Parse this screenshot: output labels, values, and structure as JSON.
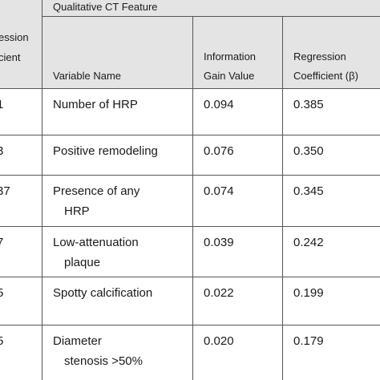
{
  "header": {
    "title": "Qualitative CT Feature",
    "left_column": [
      "ession",
      "cient"
    ],
    "variable": "Variable Name",
    "gain": [
      "Information",
      "Gain Value"
    ],
    "coef": [
      "Regression",
      "Coefficient (β)"
    ]
  },
  "table": {
    "rows": [
      {
        "left": "1",
        "variable": [
          "Number of HRP"
        ],
        "gain": "0.094",
        "coef": "0.385"
      },
      {
        "left": "3",
        "variable": [
          "Positive remodeling"
        ],
        "gain": "0.076",
        "coef": "0.350"
      },
      {
        "left": "37",
        "variable": [
          "Presence of any",
          "HRP"
        ],
        "gain": "0.074",
        "coef": "0.345"
      },
      {
        "left": "7",
        "variable": [
          "Low-attenuation",
          "plaque"
        ],
        "gain": "0.039",
        "coef": "0.242"
      },
      {
        "left": "5",
        "variable": [
          "Spotty calcification"
        ],
        "gain": "0.022",
        "coef": "0.199"
      },
      {
        "left": "5",
        "variable": [
          "Diameter",
          "stenosis >50%"
        ],
        "gain": "0.020",
        "coef": "0.179"
      }
    ]
  }
}
